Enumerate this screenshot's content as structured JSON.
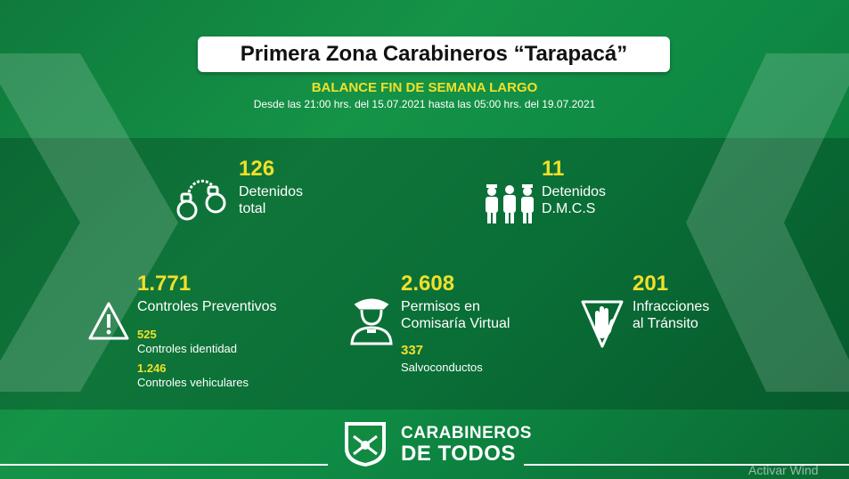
{
  "header": {
    "title": "Primera Zona Carabineros “Tarapacá”",
    "subtitle": "BALANCE FIN DE SEMANA LARGO",
    "date_range": "Desde las 21:00 hrs. del 15.07.2021 hasta las 05:00 hrs. del 19.07.2021"
  },
  "stats": {
    "detenidos_total": {
      "value": "126",
      "line1": "Detenidos",
      "line2": "total"
    },
    "detenidos_dmcs": {
      "value": "11",
      "line1": "Detenidos",
      "line2": "D.M.C.S"
    },
    "controles": {
      "value": "1.771",
      "label": "Controles Preventivos",
      "identidad_value": "525",
      "identidad_label": "Controles identidad",
      "vehiculares_value": "1.246",
      "vehiculares_label": "Controles vehiculares"
    },
    "permisos": {
      "value": "2.608",
      "line1": "Permisos en",
      "line2": "Comisaría Virtual",
      "salvo_value": "337",
      "salvo_label": "Salvoconductos"
    },
    "infracciones": {
      "value": "201",
      "line1": "Infracciones",
      "line2": "al Tránsito"
    }
  },
  "footer": {
    "brand_line1": "CARABINEROS",
    "brand_line2": "DE TODOS"
  },
  "watermark": "Activar Wind",
  "colors": {
    "background": "#138a42",
    "accent_yellow": "#f0e02a",
    "white": "#ffffff"
  },
  "icons": [
    "handcuffs-icon",
    "detainees-icon",
    "warning-icon",
    "police-officer-icon",
    "stop-hand-icon",
    "carabineros-shield-icon"
  ]
}
